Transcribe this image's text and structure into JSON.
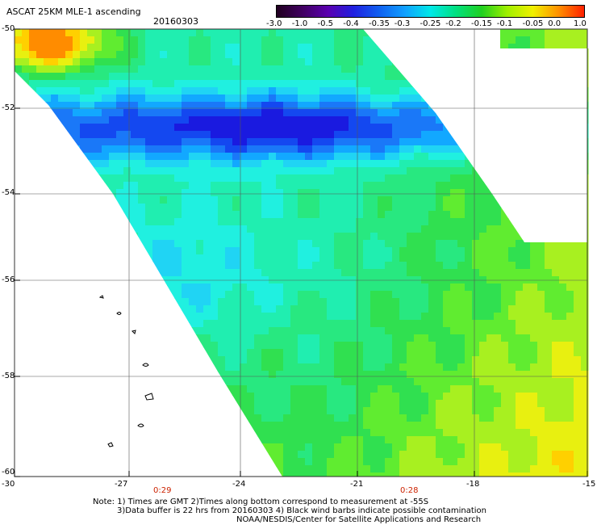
{
  "header": {
    "title": "ASCAT 25KM MLE-1 ascending",
    "date": "20160303"
  },
  "colorbar": {
    "tick_labels": [
      "-3.0",
      "-1.0",
      "-0.5",
      "-0.4",
      "-0.35",
      "-0.3",
      "-0.25",
      "-0.2",
      "-0.15",
      "-0.1",
      "-0.05",
      "0.0",
      "1.0"
    ],
    "colors": [
      "#200020",
      "#400060",
      "#5a00b0",
      "#2020e0",
      "#1060f0",
      "#10a0ff",
      "#00e8e8",
      "#00e080",
      "#20d020",
      "#a0f000",
      "#f0f000",
      "#ff9000",
      "#ff2000"
    ]
  },
  "axes": {
    "y_labels": [
      "-50",
      "-52",
      "-54",
      "-56",
      "-58",
      "-60"
    ],
    "x_labels": [
      "-30",
      "-27",
      "-24",
      "-21",
      "-18",
      "-15"
    ],
    "time_labels": [
      "0:29",
      "0:28"
    ]
  },
  "notes": {
    "line1": "Note: 1) Times are GMT 2)Times along bottom correspond to measurement at -55S",
    "line2": "3)Data buffer is 22 hrs from 20160303 4) Black wind barbs indicate possible contamination",
    "line3": "NOAA/NESDIS/Center for Satellite Applications and Research"
  }
}
